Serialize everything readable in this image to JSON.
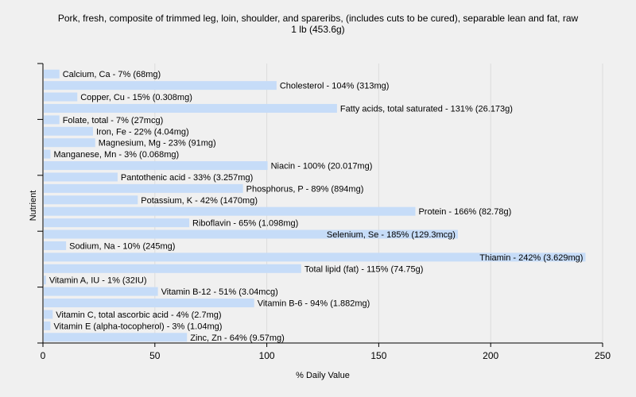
{
  "chart_data": {
    "type": "bar",
    "orientation": "horizontal",
    "title": "Pork, fresh, composite of trimmed leg, loin, shoulder, and spareribs, (includes cuts to be cured), separable lean and fat, raw",
    "subtitle": "1 lb (453.6g)",
    "xlabel": "% Daily Value",
    "ylabel": "Nutrient",
    "xlim": [
      0,
      250
    ],
    "xticks": [
      0,
      50,
      100,
      150,
      200,
      250
    ],
    "grid": true,
    "bar_color": "#c6dcf8",
    "categories": [
      "Calcium, Ca",
      "Cholesterol",
      "Copper, Cu",
      "Fatty acids, total saturated",
      "Folate, total",
      "Iron, Fe",
      "Magnesium, Mg",
      "Manganese, Mn",
      "Niacin",
      "Pantothenic acid",
      "Phosphorus, P",
      "Potassium, K",
      "Protein",
      "Riboflavin",
      "Selenium, Se",
      "Sodium, Na",
      "Thiamin",
      "Total lipid (fat)",
      "Vitamin A, IU",
      "Vitamin B-12",
      "Vitamin B-6",
      "Vitamin C, total ascorbic acid",
      "Vitamin E (alpha-tocopherol)",
      "Zinc, Zn"
    ],
    "values": [
      7,
      104,
      15,
      131,
      7,
      22,
      23,
      3,
      100,
      33,
      89,
      42,
      166,
      65,
      185,
      10,
      242,
      115,
      1,
      51,
      94,
      4,
      3,
      64
    ],
    "labels": [
      "Calcium, Ca - 7% (68mg)",
      "Cholesterol - 104% (313mg)",
      "Copper, Cu - 15% (0.308mg)",
      "Fatty acids, total saturated - 131% (26.173g)",
      "Folate, total - 7% (27mcg)",
      "Iron, Fe - 22% (4.04mg)",
      "Magnesium, Mg - 23% (91mg)",
      "Manganese, Mn - 3% (0.068mg)",
      "Niacin - 100% (20.017mg)",
      "Pantothenic acid - 33% (3.257mg)",
      "Phosphorus, P - 89% (894mg)",
      "Potassium, K - 42% (1470mg)",
      "Protein - 166% (82.78g)",
      "Riboflavin - 65% (1.098mg)",
      "Selenium, Se - 185% (129.3mcg)",
      "Sodium, Na - 10% (245mg)",
      "Thiamin - 242% (3.629mg)",
      "Total lipid (fat) - 115% (74.75g)",
      "Vitamin A, IU - 1% (32IU)",
      "Vitamin B-12 - 51% (3.04mcg)",
      "Vitamin B-6 - 94% (1.882mg)",
      "Vitamin C, total ascorbic acid - 4% (2.7mg)",
      "Vitamin E (alpha-tocopherol) - 3% (1.04mg)",
      "Zinc, Zn - 64% (9.57mg)"
    ]
  }
}
